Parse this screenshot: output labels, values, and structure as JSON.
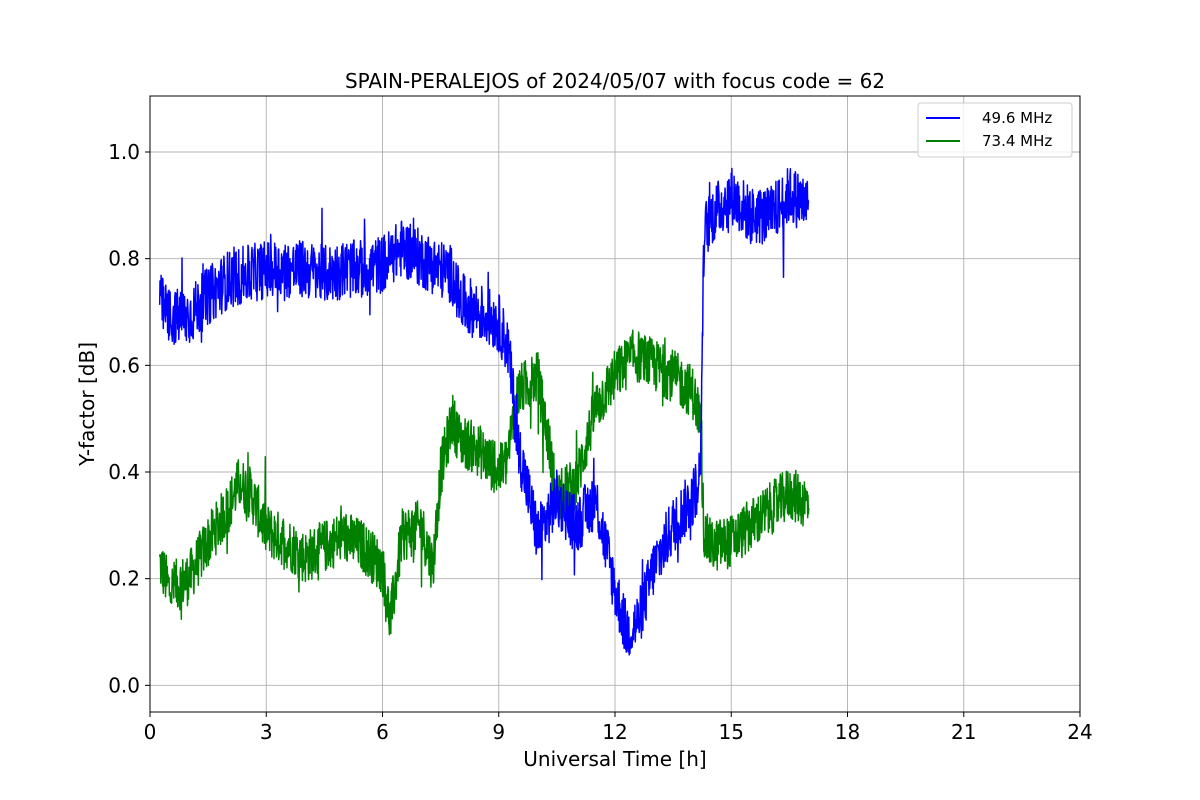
{
  "chart_data": {
    "type": "line",
    "title": "SPAIN-PERALEJOS of 2024/05/07 with focus code = 62",
    "xlabel": "Universal Time [h]",
    "ylabel": "Y-factor [dB]",
    "xlim": [
      0,
      24
    ],
    "ylim": [
      -0.05,
      1.105
    ],
    "xticks": [
      0,
      3,
      6,
      9,
      12,
      15,
      18,
      21,
      24
    ],
    "yticks": [
      0.0,
      0.2,
      0.4,
      0.6,
      0.8,
      1.0
    ],
    "xtick_labels": [
      "0",
      "3",
      "6",
      "9",
      "12",
      "15",
      "18",
      "21",
      "24"
    ],
    "ytick_labels": [
      "0.0",
      "0.2",
      "0.4",
      "0.6",
      "0.8",
      "1.0"
    ],
    "grid": true,
    "legend_position": "top-right",
    "series": [
      {
        "name": "49.6 MHz",
        "color": "#0000ff",
        "x": [
          0.25,
          0.5,
          1.0,
          1.5,
          2.0,
          2.5,
          3.0,
          3.5,
          4.0,
          4.5,
          5.0,
          5.5,
          6.0,
          6.5,
          7.0,
          7.5,
          7.8,
          8.0,
          8.5,
          9.0,
          9.25,
          9.5,
          10.0,
          10.3,
          10.5,
          11.0,
          11.5,
          12.0,
          12.3,
          12.6,
          13.0,
          13.5,
          14.0,
          14.2,
          14.3,
          14.5,
          15.0,
          15.5,
          16.0,
          16.5,
          17.0
        ],
        "y": [
          0.72,
          0.69,
          0.69,
          0.73,
          0.76,
          0.77,
          0.78,
          0.78,
          0.78,
          0.77,
          0.78,
          0.78,
          0.79,
          0.82,
          0.8,
          0.78,
          0.77,
          0.72,
          0.7,
          0.68,
          0.63,
          0.45,
          0.28,
          0.32,
          0.35,
          0.3,
          0.35,
          0.18,
          0.1,
          0.12,
          0.22,
          0.3,
          0.35,
          0.4,
          0.85,
          0.88,
          0.92,
          0.88,
          0.88,
          0.92,
          0.9
        ],
        "noise_amplitude": 0.055
      },
      {
        "name": "73.4 MHz",
        "color": "#008000",
        "x": [
          0.25,
          0.5,
          1.0,
          1.5,
          2.0,
          2.3,
          2.6,
          3.0,
          3.5,
          4.0,
          4.5,
          5.0,
          5.5,
          6.0,
          6.2,
          6.5,
          7.0,
          7.3,
          7.5,
          7.8,
          8.0,
          8.5,
          9.0,
          9.2,
          9.5,
          10.0,
          10.3,
          10.5,
          11.0,
          11.5,
          12.0,
          12.5,
          13.0,
          13.5,
          14.0,
          14.2,
          14.3,
          14.5,
          15.0,
          15.5,
          16.0,
          16.5,
          17.0
        ],
        "y": [
          0.23,
          0.18,
          0.2,
          0.27,
          0.33,
          0.38,
          0.36,
          0.29,
          0.27,
          0.24,
          0.26,
          0.28,
          0.26,
          0.22,
          0.12,
          0.28,
          0.3,
          0.22,
          0.4,
          0.5,
          0.46,
          0.44,
          0.4,
          0.42,
          0.55,
          0.58,
          0.45,
          0.35,
          0.38,
          0.52,
          0.58,
          0.62,
          0.6,
          0.58,
          0.55,
          0.5,
          0.28,
          0.26,
          0.27,
          0.3,
          0.33,
          0.36,
          0.34
        ],
        "noise_amplitude": 0.05
      }
    ]
  }
}
